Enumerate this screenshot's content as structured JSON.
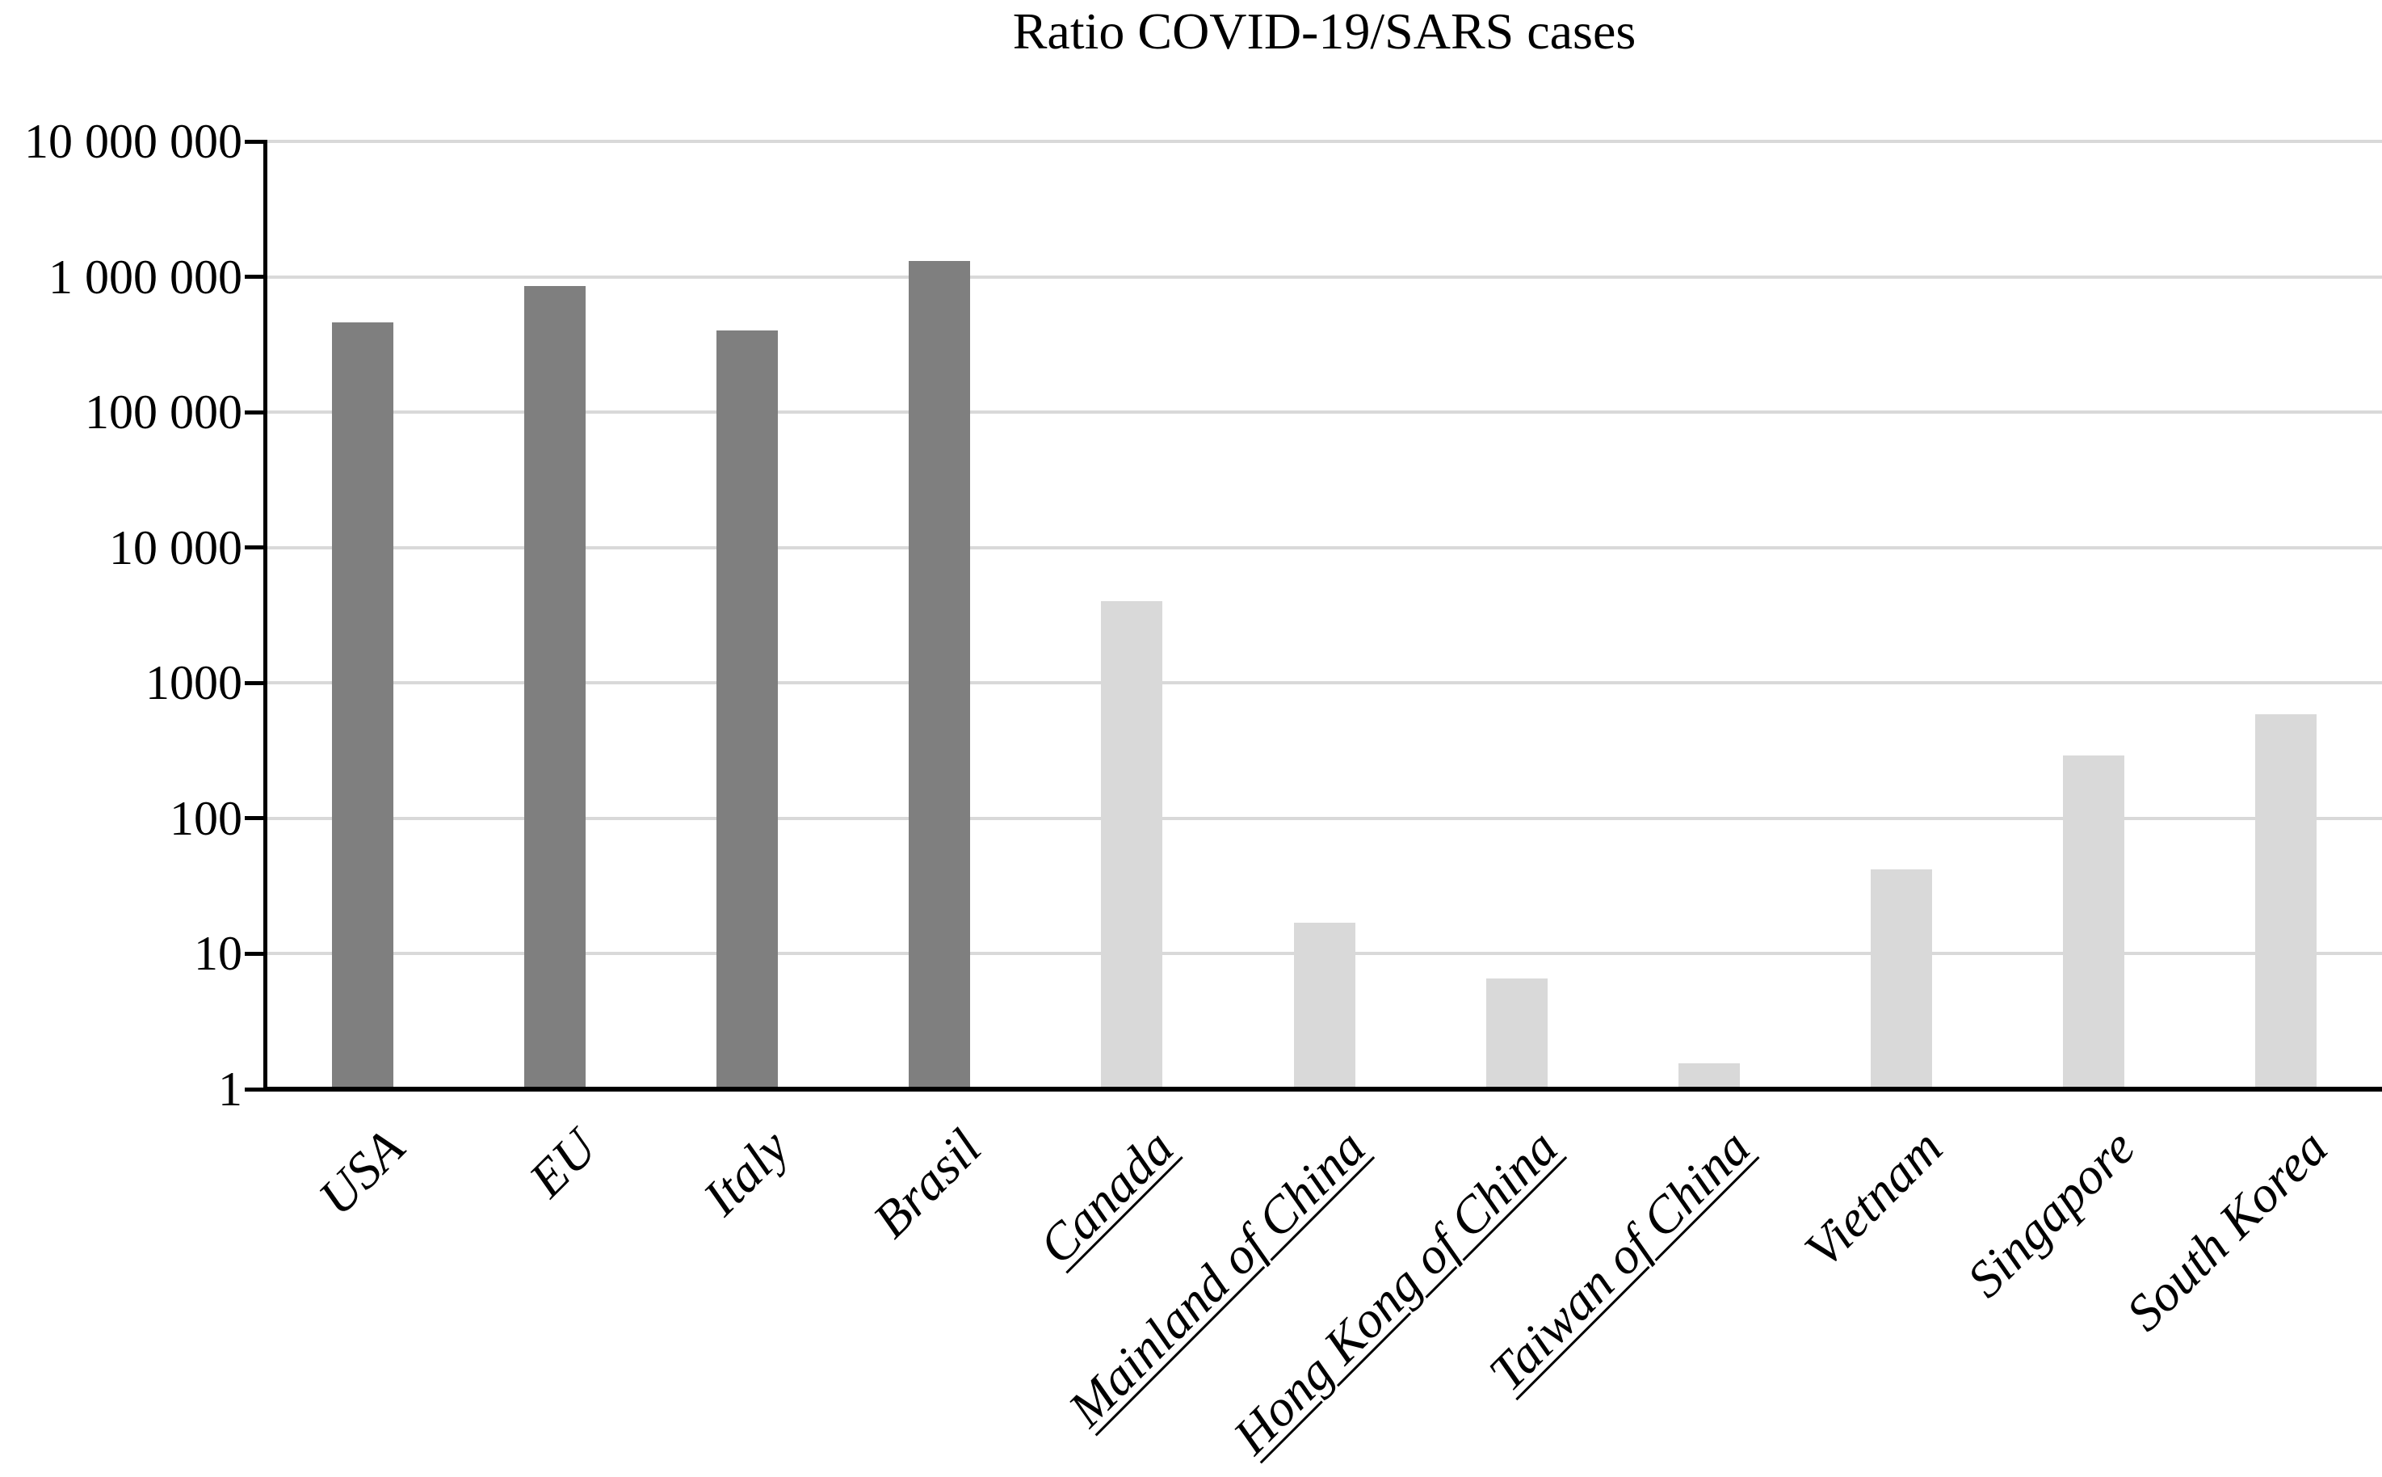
{
  "title": "Ratio COVID-19/SARS cases",
  "colors": {
    "dark_bar": "#7f7f7f",
    "light_bar": "#d9d9d9",
    "gridline": "#d9d9d9",
    "axis": "#000000",
    "text": "#000000"
  },
  "y_axis": {
    "tick_labels": [
      "10 000 000",
      "1 000 000",
      "100 000",
      "10 000",
      "1000",
      "100",
      "10",
      "1"
    ],
    "tick_values": [
      10000000,
      1000000,
      100000,
      10000,
      1000,
      100,
      10,
      1
    ]
  },
  "chart_data": {
    "type": "bar",
    "title": "Ratio COVID-19/SARS cases",
    "xlabel": "",
    "ylabel": "",
    "y_scale": "log10",
    "ylim": [
      1,
      10000000
    ],
    "grid": "horizontal",
    "legend": "none",
    "categories": [
      "USA",
      "EU",
      "Italy",
      "Brasil",
      "Canada",
      "Mainland of China",
      "Hong Kong of China",
      "Taiwan of China",
      "Vietnam",
      "Singapore",
      "South Korea"
    ],
    "values": [
      460000,
      860000,
      400000,
      1300000,
      4000,
      17,
      6.6,
      1.55,
      42,
      290,
      590
    ],
    "bar_groups": [
      "dark",
      "dark",
      "dark",
      "dark",
      "light",
      "light",
      "light",
      "light",
      "light",
      "light",
      "light"
    ],
    "underlined_categories": [
      "Canada",
      "Mainland of China",
      "Hong Kong of China",
      "Taiwan of China"
    ]
  }
}
